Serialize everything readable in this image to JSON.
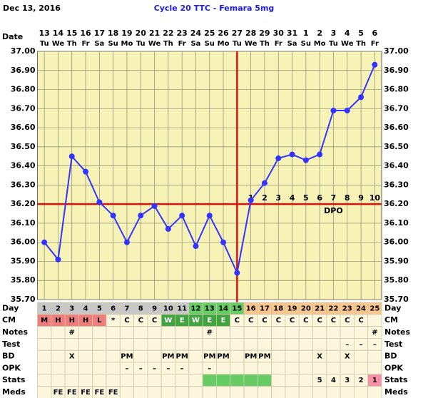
{
  "chart_data": {
    "type": "line",
    "date": "Dec 13, 2016",
    "title": "Cycle 20 TTC - Femara 5mg",
    "x_label": "Date",
    "dates": [
      13,
      14,
      15,
      16,
      17,
      18,
      19,
      20,
      21,
      22,
      23,
      24,
      25,
      26,
      27,
      28,
      29,
      30,
      31,
      1,
      2,
      3,
      4,
      5,
      6
    ],
    "weekdays": [
      "Tu",
      "We",
      "Th",
      "Fr",
      "Sa",
      "Su",
      "Mo",
      "Tu",
      "We",
      "Th",
      "Fr",
      "Sa",
      "Su",
      "Mo",
      "Tu",
      "We",
      "Th",
      "Fr",
      "Sa",
      "Su",
      "Mo",
      "Tu",
      "We",
      "Th",
      "Fr"
    ],
    "values": [
      36.0,
      35.91,
      36.45,
      36.37,
      36.21,
      36.14,
      36.0,
      36.14,
      36.19,
      36.07,
      36.14,
      35.98,
      36.14,
      36.0,
      35.84,
      36.22,
      36.31,
      36.44,
      36.46,
      36.43,
      36.46,
      36.69,
      36.69,
      36.76,
      36.93
    ],
    "color": "#3333ff",
    "ylim": [
      35.7,
      37.0
    ],
    "yticks": [
      {
        "value": 35.7,
        "label": "35.70"
      },
      {
        "value": 35.8,
        "label": "35.80"
      },
      {
        "value": 35.9,
        "label": "35.90"
      },
      {
        "value": 36.0,
        "label": "36.00"
      },
      {
        "value": 36.1,
        "label": "36.10"
      },
      {
        "value": 36.2,
        "label": "36.20"
      },
      {
        "value": 36.3,
        "label": "36.30"
      },
      {
        "value": 36.4,
        "label": "36.40"
      },
      {
        "value": 36.5,
        "label": "36.50"
      },
      {
        "value": 36.6,
        "label": "36.60"
      },
      {
        "value": 36.7,
        "label": "36.70"
      },
      {
        "value": 36.8,
        "label": "36.80"
      },
      {
        "value": 36.9,
        "label": "36.90"
      },
      {
        "value": 37.0,
        "label": "37.00"
      }
    ],
    "grid": true,
    "coverline": 36.2,
    "ovulation_day": 15,
    "line_color": "#e01010",
    "dpo_label": "DPO",
    "dpo": [
      null,
      null,
      null,
      null,
      null,
      null,
      null,
      null,
      null,
      null,
      null,
      null,
      null,
      null,
      null,
      1,
      2,
      3,
      4,
      5,
      6,
      7,
      8,
      9,
      10
    ],
    "table": [
      {
        "label": "Day",
        "cells": [
          1,
          2,
          3,
          4,
          5,
          6,
          7,
          8,
          9,
          10,
          11,
          12,
          13,
          14,
          15,
          16,
          17,
          18,
          19,
          20,
          21,
          22,
          23,
          24,
          25
        ]
      },
      {
        "label": "CM",
        "cells": [
          "M",
          "H",
          "H",
          "H",
          "L",
          "*",
          "C",
          "C",
          "C",
          "W",
          "E",
          "W",
          "E",
          "E",
          "C",
          "C",
          "C",
          "C",
          "C",
          "C",
          "C",
          "C",
          "C",
          "C",
          null
        ]
      },
      {
        "label": "Notes",
        "cells": [
          null,
          null,
          "#",
          null,
          null,
          null,
          null,
          null,
          null,
          null,
          null,
          null,
          "#",
          null,
          null,
          null,
          null,
          null,
          null,
          null,
          null,
          null,
          null,
          null,
          "#"
        ]
      },
      {
        "label": "Test",
        "cells": [
          null,
          null,
          null,
          null,
          null,
          null,
          null,
          null,
          null,
          null,
          null,
          null,
          null,
          null,
          null,
          null,
          null,
          null,
          null,
          null,
          null,
          null,
          "–",
          "–",
          "–"
        ]
      },
      {
        "label": "BD",
        "cells": [
          null,
          null,
          "X",
          null,
          null,
          null,
          "PM",
          null,
          null,
          "PM",
          "PM",
          null,
          "PM",
          "PM",
          null,
          "PM",
          "PM",
          null,
          null,
          null,
          "X",
          null,
          "X",
          null,
          null
        ]
      },
      {
        "label": "OPK",
        "cells": [
          null,
          null,
          null,
          null,
          null,
          null,
          "–",
          "–",
          "–",
          "–",
          "–",
          null,
          "–",
          null,
          null,
          null,
          null,
          null,
          null,
          null,
          null,
          null,
          null,
          null,
          null
        ]
      },
      {
        "label": "Stats",
        "cells": [
          null,
          null,
          null,
          null,
          null,
          null,
          null,
          null,
          null,
          null,
          null,
          null,
          null,
          null,
          null,
          null,
          null,
          null,
          null,
          null,
          5,
          4,
          3,
          2,
          1
        ]
      },
      {
        "label": "Meds",
        "cells": [
          null,
          "FE",
          "FE",
          "FE",
          "FE",
          "FE",
          null,
          null,
          null,
          null,
          null,
          null,
          null,
          null,
          null,
          null,
          null,
          null,
          null,
          null,
          null,
          null,
          null,
          null,
          null
        ]
      }
    ]
  }
}
